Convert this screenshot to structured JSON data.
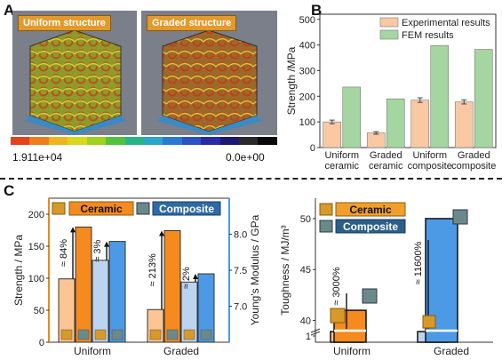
{
  "panels": {
    "A": "A",
    "B": "B",
    "C": "C"
  },
  "panel_a": {
    "left_title": "Uniform structure",
    "right_title": "Graded structure",
    "colorbar_max": "1.911e+04",
    "colorbar_min": "0.0e+00",
    "colorbar_colors": [
      "#e2421c",
      "#f07c1c",
      "#f0b41c",
      "#d8d81c",
      "#9ed21c",
      "#52c23a",
      "#28b48a",
      "#2aa6c6",
      "#2a7ad2",
      "#2a52c2",
      "#2a2aa6",
      "#1a1a70",
      "#2a2a2a",
      "#0a0a0a"
    ]
  },
  "chart_data": [
    {
      "type": "bar",
      "panel": "B",
      "categories": [
        "Uniform ceramic",
        "Graded ceramic",
        "Uniform composite",
        "Graded composite"
      ],
      "category_lines": [
        [
          "Uniform",
          "ceramic"
        ],
        [
          "Graded",
          "ceramic"
        ],
        [
          "Uniform",
          "composite"
        ],
        [
          "Graded",
          "composite"
        ]
      ],
      "series": [
        {
          "name": "Experimental results",
          "values": [
            100,
            57,
            185,
            178
          ],
          "errors": [
            7,
            5,
            9,
            8
          ],
          "color": "#f9c9a3"
        },
        {
          "name": "FEM results",
          "values": [
            236,
            190,
            398,
            383
          ],
          "color": "#a5d6a2"
        }
      ],
      "ylabel": "Strength /MPa",
      "ylim": [
        0,
        520
      ],
      "yticks": [
        0,
        100,
        200,
        300,
        400,
        500
      ],
      "legend": "top-left"
    },
    {
      "type": "bar",
      "panel": "C-left",
      "groups": [
        "Uniform",
        "Graded"
      ],
      "bars": [
        {
          "group": "Uniform",
          "name": "Ceramic",
          "metric": "Strength",
          "value": 99,
          "color": "#fcc593"
        },
        {
          "group": "Uniform",
          "name": "Ceramic",
          "metric": "Young's Modulus",
          "value": 8.1,
          "color": "#f58a1f"
        },
        {
          "group": "Uniform",
          "name": "Composite",
          "metric": "Strength",
          "value": 128,
          "color": "#bcd4f0"
        },
        {
          "group": "Uniform",
          "name": "Composite",
          "metric": "Young's Modulus",
          "value": 7.9,
          "color": "#4c9ae6"
        },
        {
          "group": "Graded",
          "name": "Ceramic",
          "metric": "Strength",
          "value": 51,
          "color": "#fcc593"
        },
        {
          "group": "Graded",
          "name": "Ceramic",
          "metric": "Young's Modulus",
          "value": 8.05,
          "color": "#f58a1f"
        },
        {
          "group": "Graded",
          "name": "Composite",
          "metric": "Strength",
          "value": 94,
          "color": "#bcd4f0"
        },
        {
          "group": "Graded",
          "name": "Composite",
          "metric": "Young's Modulus",
          "value": 7.45,
          "color": "#4c9ae6"
        }
      ],
      "annotations": [
        "≈ 84%",
        "≈ 3%",
        "≈ 213%",
        "≈ 2%"
      ],
      "ylabel_left": "Strength / MPa",
      "ylim_left": [
        0,
        225
      ],
      "yticks_left": [
        0,
        50,
        100,
        150,
        200
      ],
      "ylabel_right": "Young's Modulus / GPa",
      "ylim_right": [
        6.5,
        8.5
      ],
      "yticks_right": [
        7.0,
        7.5,
        8.0
      ],
      "legend_labels": [
        "Ceramic",
        "Composite"
      ],
      "legend": "top"
    },
    {
      "type": "bar",
      "panel": "C-right",
      "groups": [
        "Uniform",
        "Graded"
      ],
      "bars": [
        {
          "group": "Uniform",
          "name": "Ceramic",
          "value": 0.4,
          "color": "#fcc593"
        },
        {
          "group": "Uniform",
          "name": "Composite",
          "value": 41,
          "color": "#f58a1f"
        },
        {
          "group": "Graded",
          "name": "Ceramic",
          "value": 0.43,
          "color": "#bcd4f0"
        },
        {
          "group": "Graded",
          "name": "Composite",
          "value": 50,
          "color": "#4c9ae6"
        }
      ],
      "annotations": [
        "≈ 3000%",
        "≈ 11600%"
      ],
      "ylabel": "Toughness / MJ/m³",
      "broken_axis": true,
      "yticks": [
        "1",
        "40",
        "45",
        "50"
      ],
      "legend_labels": [
        "Ceramic",
        "Composite"
      ],
      "legend": "top-left"
    }
  ]
}
